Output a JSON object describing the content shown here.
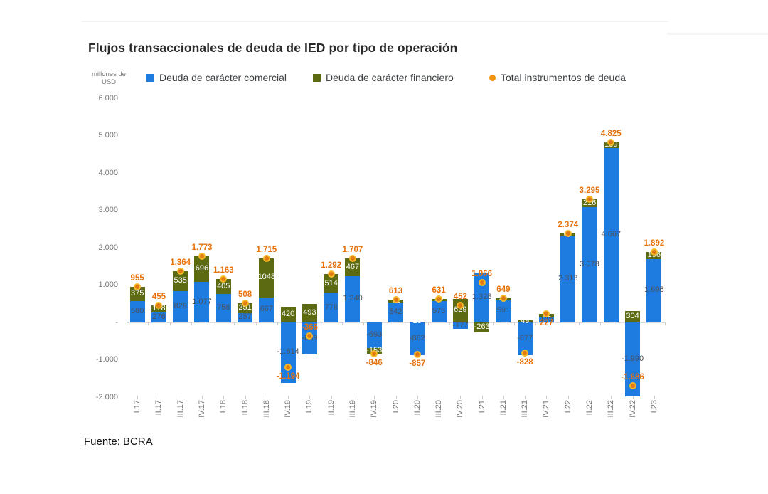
{
  "header": {
    "title": "Flujos transaccionales de deuda de IED por tipo de operación"
  },
  "axis_unit": {
    "line1": "millones de",
    "line2": "USD"
  },
  "legend": [
    {
      "label": "Deuda de carácter comercial",
      "marker": "square",
      "color": "#1e7be0"
    },
    {
      "label": "Deuda de carácter financiero",
      "marker": "square",
      "color": "#5c6a12"
    },
    {
      "label": "Total instrumentos de deuda",
      "marker": "dot",
      "color": "#ef9408"
    }
  ],
  "footer": {
    "source": "Fuente: BCRA"
  },
  "chart_data": {
    "type": "bar",
    "stacked": true,
    "title": "Flujos transaccionales de deuda de IED por tipo de operación",
    "ylabel": "millones de USD",
    "xlabel": "",
    "gridlines": false,
    "legend_position": "top",
    "categories": [
      "I.17",
      "II.17",
      "III.17",
      "IV.17",
      "I.18",
      "II.18",
      "III.18",
      "IV.18",
      "I.19",
      "II.19",
      "III.19",
      "IV.19",
      "I.20",
      "II.20",
      "III.20",
      "IV.20",
      "I.21",
      "II.21",
      "III.21",
      "IV.21",
      "I.22",
      "II.22",
      "III.22",
      "IV.22",
      "I.23"
    ],
    "series": [
      {
        "name": "Deuda de carácter comercial",
        "color": "#1e7be0",
        "label_color": "#4a5260",
        "values": [
          580,
          276,
          829,
          1077,
          758,
          257,
          667,
          -1614,
          -859,
          778,
          1240,
          -693,
          542,
          -882,
          575,
          -177,
          1328,
          591,
          -877,
          145,
          2313,
          3078,
          4667,
          -1990,
          1696
        ],
        "labels": [
          "580",
          "276",
          "829",
          "1.077",
          "758",
          "257",
          "667",
          "-1.614",
          "-859",
          "778",
          "1.240",
          "-693",
          "542",
          "-882",
          "575",
          "-177",
          "1.328",
          "591",
          "-877",
          "145",
          "2.313",
          "3.078",
          "4.667",
          "-1.990",
          "1.696"
        ]
      },
      {
        "name": "Deuda de carácter financiero",
        "color": "#5c6a12",
        "label_color": "#ffffff",
        "values": [
          375,
          178,
          535,
          696,
          405,
          251,
          1048,
          420,
          493,
          514,
          467,
          -153,
          72,
          25,
          56,
          629,
          -263,
          57,
          49,
          82,
          61,
          216,
          159,
          304,
          196
        ],
        "labels": [
          "375",
          "178",
          "535",
          "696",
          "405",
          "251",
          "1048",
          "420",
          "493",
          "514",
          "467",
          "-153",
          "72",
          "25",
          "56",
          "629",
          "-263",
          "57",
          "49",
          "82",
          "61",
          "216",
          "159",
          "304",
          "196"
        ]
      }
    ],
    "total_series": {
      "name": "Total instrumentos de deuda",
      "dot_fill": "#e07a12",
      "dot_ring": "#f6b926",
      "label_color": "#e8710a",
      "values": [
        955,
        455,
        1364,
        1773,
        1163,
        508,
        1715,
        -1194,
        -366,
        1292,
        1707,
        -846,
        613,
        -857,
        631,
        452,
        1066,
        649,
        -828,
        227,
        2374,
        3295,
        4825,
        -1686,
        1892
      ],
      "labels": [
        "955",
        "455",
        "1.364",
        "1.773",
        "1.163",
        "508",
        "1.715",
        "-1.194",
        "-366",
        "1.292",
        "1.707",
        "-846",
        "613",
        "-857",
        "631",
        "452",
        "1.066",
        "649",
        "-828",
        "227",
        "2.374",
        "3.295",
        "4.825",
        "-1.686",
        "1.892"
      ]
    },
    "total_label_flip_indices": [
      8,
      19,
      23
    ],
    "y_axis": {
      "min": -2000,
      "max": 6000,
      "ticks": [
        {
          "label": "6.000",
          "value": 6000
        },
        {
          "label": "5.000",
          "value": 5000
        },
        {
          "label": "4.000",
          "value": 4000
        },
        {
          "label": "3.000",
          "value": 3000
        },
        {
          "label": "2.000",
          "value": 2000
        },
        {
          "label": "1.000",
          "value": 1000
        },
        {
          "label": "-",
          "value": 0
        },
        {
          "label": "-1.000",
          "value": -1000
        },
        {
          "label": "-2.000",
          "value": -2000
        }
      ]
    }
  }
}
